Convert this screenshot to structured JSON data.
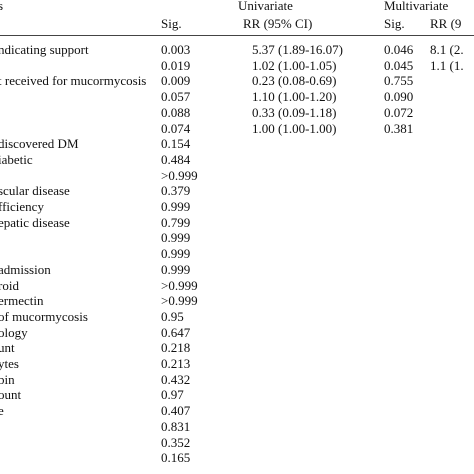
{
  "header": {
    "variables": "s",
    "univariate": "Univariate",
    "multivariate": "Multivariate",
    "sig": "Sig.",
    "rr": "RR (95% CI)",
    "msig": "Sig.",
    "mrr": "RR (9"
  },
  "table": {
    "rows": [
      {
        "label": "ndicating support",
        "sig": "0.003",
        "rr": "5.37 (1.89-16.07)",
        "msig": "0.046",
        "mrr": "8.1 (2."
      },
      {
        "sig": "0.019",
        "rr": "1.02 (1.00-1.05)",
        "msig": "0.045",
        "mrr": "1.1 (1."
      },
      {
        "label": "t received for mucormycosis",
        "sig": "0.009",
        "rr": "0.23 (0.08-0.69)",
        "msig": "0.755"
      },
      {
        "sig": "0.057",
        "rr": "1.10 (1.00-1.20)",
        "msig": "0.090"
      },
      {
        "sig": "0.088",
        "rr": "0.33 (0.09-1.18)",
        "msig": "0.072"
      },
      {
        "sig": "0.074",
        "rr": "1.00 (1.00-1.00)",
        "msig": "0.381"
      },
      {
        "label": "discovered DM",
        "sig": "0.154"
      },
      {
        "label": "iabetic",
        "sig": "0.484"
      },
      {
        "sig": ">0.999"
      },
      {
        "label": "scular disease",
        "sig": "0.379"
      },
      {
        "label": "fficiency",
        "sig": "0.999"
      },
      {
        "label": "epatic disease",
        "sig": "0.799"
      },
      {
        "sig": "0.999"
      },
      {
        "sig": "0.999"
      },
      {
        "label": "admission",
        "sig": "0.999"
      },
      {
        "label": "roid",
        "sig": ">0.999"
      },
      {
        "label": "ermectin",
        "sig": ">0.999"
      },
      {
        "label": "of mucormycosis",
        "sig": "0.95"
      },
      {
        "label": "ology",
        "sig": "0.647"
      },
      {
        "label": "unt",
        "sig": "0.218"
      },
      {
        "label": "ytes",
        "sig": "0.213"
      },
      {
        "label": "bin",
        "sig": "0.432"
      },
      {
        "label": "ount",
        "sig": "0.97"
      },
      {
        "label": "e",
        "sig": "0.407"
      },
      {
        "sig": "0.831"
      },
      {
        "sig": "0.352"
      },
      {
        "sig": "0.165"
      }
    ]
  }
}
